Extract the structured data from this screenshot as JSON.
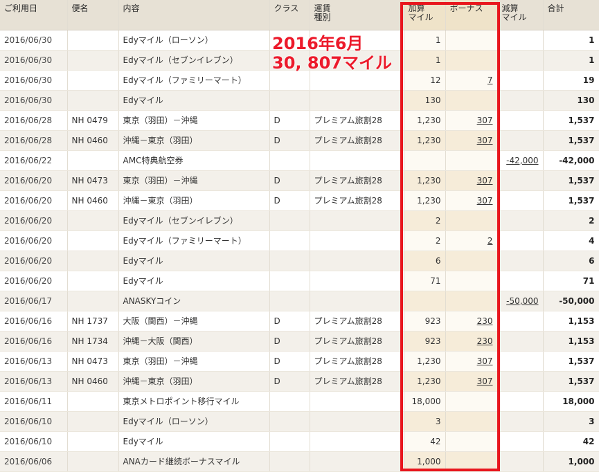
{
  "headers": {
    "date": "ご利用日",
    "flight": "便名",
    "content": "内容",
    "class": "クラス",
    "fare_line1": "運賃",
    "fare_line2": "種別",
    "add_line1": "加算",
    "add_line2": "マイル",
    "bonus": "ボーナス",
    "sub_line1": "減算",
    "sub_line2": "マイル",
    "total": "合計"
  },
  "annotation": {
    "line1": "2016年6月",
    "line2": "30, 807マイル"
  },
  "colors": {
    "highlight": "#e8161d",
    "annotation": "#ec1a2b"
  },
  "rows": [
    {
      "date": "2016/06/30",
      "flight": "",
      "content": "Edyマイル（ローソン）",
      "class": "",
      "fare": "",
      "add": "1",
      "bonus": "",
      "sub": "",
      "total": "1"
    },
    {
      "date": "2016/06/30",
      "flight": "",
      "content": "Edyマイル（セブンイレブン）",
      "class": "",
      "fare": "",
      "add": "1",
      "bonus": "",
      "sub": "",
      "total": "1"
    },
    {
      "date": "2016/06/30",
      "flight": "",
      "content": "Edyマイル（ファミリーマート）",
      "class": "",
      "fare": "",
      "add": "12",
      "bonus": "7",
      "sub": "",
      "total": "19"
    },
    {
      "date": "2016/06/30",
      "flight": "",
      "content": "Edyマイル",
      "class": "",
      "fare": "",
      "add": "130",
      "bonus": "",
      "sub": "",
      "total": "130"
    },
    {
      "date": "2016/06/28",
      "flight": "NH 0479",
      "content": "東京（羽田）－沖縄",
      "class": "D",
      "fare": "プレミアム旅割28",
      "add": "1,230",
      "bonus": "307",
      "sub": "",
      "total": "1,537"
    },
    {
      "date": "2016/06/28",
      "flight": "NH 0460",
      "content": "沖縄－東京（羽田）",
      "class": "D",
      "fare": "プレミアム旅割28",
      "add": "1,230",
      "bonus": "307",
      "sub": "",
      "total": "1,537"
    },
    {
      "date": "2016/06/22",
      "flight": "",
      "content": "AMC特典航空券",
      "class": "",
      "fare": "",
      "add": "",
      "bonus": "",
      "sub": "-42,000",
      "total": "-42,000"
    },
    {
      "date": "2016/06/20",
      "flight": "NH 0473",
      "content": "東京（羽田）－沖縄",
      "class": "D",
      "fare": "プレミアム旅割28",
      "add": "1,230",
      "bonus": "307",
      "sub": "",
      "total": "1,537"
    },
    {
      "date": "2016/06/20",
      "flight": "NH 0460",
      "content": "沖縄－東京（羽田）",
      "class": "D",
      "fare": "プレミアム旅割28",
      "add": "1,230",
      "bonus": "307",
      "sub": "",
      "total": "1,537"
    },
    {
      "date": "2016/06/20",
      "flight": "",
      "content": "Edyマイル（セブンイレブン）",
      "class": "",
      "fare": "",
      "add": "2",
      "bonus": "",
      "sub": "",
      "total": "2"
    },
    {
      "date": "2016/06/20",
      "flight": "",
      "content": "Edyマイル（ファミリーマート）",
      "class": "",
      "fare": "",
      "add": "2",
      "bonus": "2",
      "sub": "",
      "total": "4"
    },
    {
      "date": "2016/06/20",
      "flight": "",
      "content": "Edyマイル",
      "class": "",
      "fare": "",
      "add": "6",
      "bonus": "",
      "sub": "",
      "total": "6"
    },
    {
      "date": "2016/06/20",
      "flight": "",
      "content": "Edyマイル",
      "class": "",
      "fare": "",
      "add": "71",
      "bonus": "",
      "sub": "",
      "total": "71"
    },
    {
      "date": "2016/06/17",
      "flight": "",
      "content": "ANASKYコイン",
      "class": "",
      "fare": "",
      "add": "",
      "bonus": "",
      "sub": "-50,000",
      "total": "-50,000"
    },
    {
      "date": "2016/06/16",
      "flight": "NH 1737",
      "content": "大阪（関西）－沖縄",
      "class": "D",
      "fare": "プレミアム旅割28",
      "add": "923",
      "bonus": "230",
      "sub": "",
      "total": "1,153"
    },
    {
      "date": "2016/06/16",
      "flight": "NH 1734",
      "content": "沖縄－大阪（関西）",
      "class": "D",
      "fare": "プレミアム旅割28",
      "add": "923",
      "bonus": "230",
      "sub": "",
      "total": "1,153"
    },
    {
      "date": "2016/06/13",
      "flight": "NH 0473",
      "content": "東京（羽田）－沖縄",
      "class": "D",
      "fare": "プレミアム旅割28",
      "add": "1,230",
      "bonus": "307",
      "sub": "",
      "total": "1,537"
    },
    {
      "date": "2016/06/13",
      "flight": "NH 0460",
      "content": "沖縄－東京（羽田）",
      "class": "D",
      "fare": "プレミアム旅割28",
      "add": "1,230",
      "bonus": "307",
      "sub": "",
      "total": "1,537"
    },
    {
      "date": "2016/06/11",
      "flight": "",
      "content": "東京メトロポイント移行マイル",
      "class": "",
      "fare": "",
      "add": "18,000",
      "bonus": "",
      "sub": "",
      "total": "18,000"
    },
    {
      "date": "2016/06/10",
      "flight": "",
      "content": "Edyマイル（ローソン）",
      "class": "",
      "fare": "",
      "add": "3",
      "bonus": "",
      "sub": "",
      "total": "3"
    },
    {
      "date": "2016/06/10",
      "flight": "",
      "content": "Edyマイル",
      "class": "",
      "fare": "",
      "add": "42",
      "bonus": "",
      "sub": "",
      "total": "42"
    },
    {
      "date": "2016/06/06",
      "flight": "",
      "content": "ANAカード継続ボーナスマイル",
      "class": "",
      "fare": "",
      "add": "1,000",
      "bonus": "",
      "sub": "",
      "total": "1,000"
    }
  ]
}
